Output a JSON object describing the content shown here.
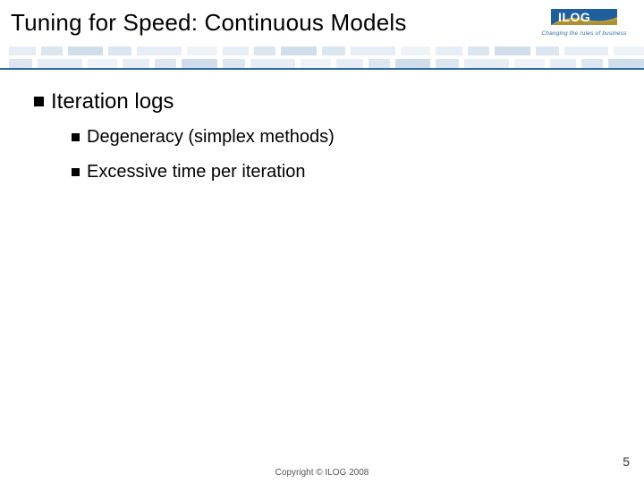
{
  "header": {
    "title": "Tuning for Speed: Continuous Models",
    "logo": {
      "text": "ILOG",
      "text_color": "#ffffff",
      "banner_color": "#1f5f9e",
      "swoosh_color": "#c6a438",
      "tagline": "Changing the rules of business"
    },
    "rule_color": "#2a67a5",
    "deco": {
      "colors": [
        "#e6edf5",
        "#dbe6f0",
        "#d0deeb",
        "#dbe6f0",
        "#e6edf5",
        "#eef3f8"
      ],
      "widths": [
        30,
        24,
        40,
        26,
        50,
        34
      ]
    }
  },
  "content": {
    "level1": {
      "text": "Iteration logs"
    },
    "level2": [
      {
        "text": "Degeneracy (simplex methods)"
      },
      {
        "text": "Excessive time per iteration"
      }
    ]
  },
  "footer": {
    "copyright": "Copyright © ILOG 2008",
    "slide_number": "5"
  }
}
